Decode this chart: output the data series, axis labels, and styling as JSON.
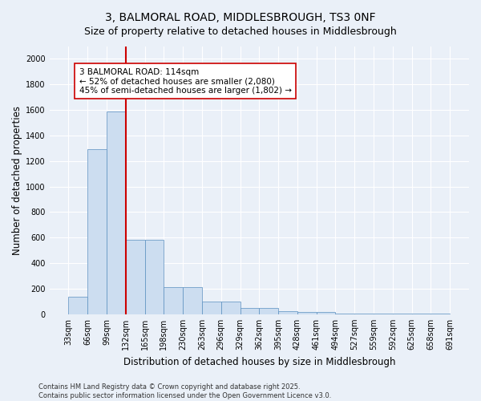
{
  "title": "3, BALMORAL ROAD, MIDDLESBROUGH, TS3 0NF",
  "subtitle": "Size of property relative to detached houses in Middlesbrough",
  "xlabel": "Distribution of detached houses by size in Middlesbrough",
  "ylabel": "Number of detached properties",
  "bar_values": [
    140,
    1290,
    1590,
    580,
    580,
    215,
    215,
    100,
    100,
    50,
    50,
    25,
    20,
    15,
    5,
    5,
    5,
    5,
    5,
    5
  ],
  "categories": [
    "33sqm",
    "66sqm",
    "99sqm",
    "132sqm",
    "165sqm",
    "198sqm",
    "230sqm",
    "263sqm",
    "296sqm",
    "329sqm",
    "362sqm",
    "395sqm",
    "428sqm",
    "461sqm",
    "494sqm",
    "527sqm",
    "559sqm",
    "592sqm",
    "625sqm",
    "658sqm",
    "691sqm"
  ],
  "bar_edge_color": "#5a8fc0",
  "bar_fill_color": "#ccddf0",
  "vline_color": "#cc0000",
  "annotation_text": "3 BALMORAL ROAD: 114sqm\n← 52% of detached houses are smaller (2,080)\n45% of semi-detached houses are larger (1,802) →",
  "annotation_box_color": "#ffffff",
  "annotation_border_color": "#cc0000",
  "ylim": [
    0,
    2100
  ],
  "yticks": [
    0,
    200,
    400,
    600,
    800,
    1000,
    1200,
    1400,
    1600,
    1800,
    2000
  ],
  "footer_line1": "Contains HM Land Registry data © Crown copyright and database right 2025.",
  "footer_line2": "Contains public sector information licensed under the Open Government Licence v3.0.",
  "bg_color": "#eaf0f8",
  "grid_color": "#ffffff",
  "title_fontsize": 10,
  "label_fontsize": 8.5,
  "tick_fontsize": 7,
  "annotation_fontsize": 7.5,
  "footer_fontsize": 6
}
